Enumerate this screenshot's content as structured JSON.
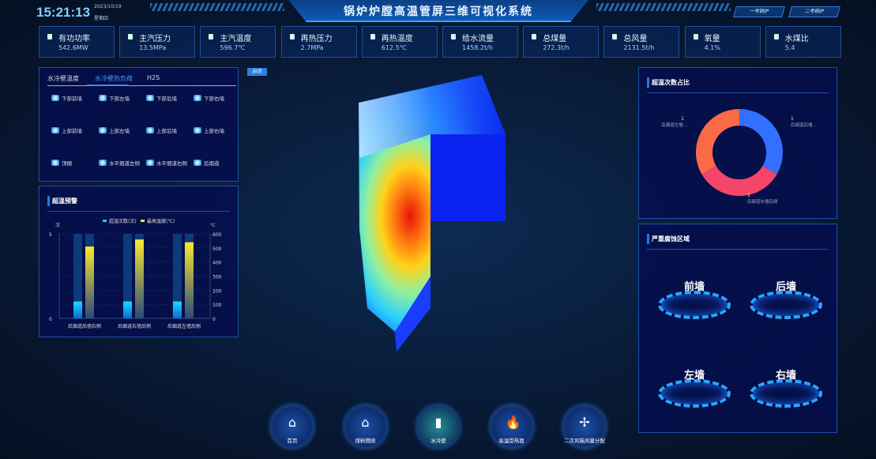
{
  "header": {
    "time": "15:21:13",
    "date": "2023/10/19",
    "weekday": "星期四",
    "title": "锅炉炉膛高温管屏三维可视化系统",
    "boiler_buttons": [
      "一号锅炉",
      "二号锅炉"
    ]
  },
  "metrics": [
    {
      "label": "有功功率",
      "value": "542.6MW"
    },
    {
      "label": "主汽压力",
      "value": "13.5MPa"
    },
    {
      "label": "主汽温度",
      "value": "596.7℃"
    },
    {
      "label": "再热压力",
      "value": "2.7MPa"
    },
    {
      "label": "再热温度",
      "value": "612.5℃"
    },
    {
      "label": "给水流量",
      "value": "1458.2t/h"
    },
    {
      "label": "总煤量",
      "value": "272.3t/h"
    },
    {
      "label": "总风量",
      "value": "2131.5t/h"
    },
    {
      "label": "氧量",
      "value": "4.1%"
    },
    {
      "label": "水煤比",
      "value": "5.4"
    }
  ],
  "wall_panel": {
    "tabs": [
      "水冷壁温度",
      "水冷壁热负荷",
      "H2S"
    ],
    "active_tab": 1,
    "items": [
      "下部前墙",
      "下部左墙",
      "下部后墙",
      "下部右墙",
      "上部前墙",
      "上部左墙",
      "上部后墙",
      "上部右墙",
      "顶棚",
      "水平烟道左侧",
      "水平烟道右侧",
      "后烟道"
    ]
  },
  "start_button": "启动",
  "chart_data": [
    {
      "type": "bar",
      "title": "超温预警",
      "categories": [
        "后烟道后墙右侧",
        "后烟道右墙后侧",
        "后烟道左墙后侧"
      ],
      "series": [
        {
          "name": "超温次数(次)",
          "values": [
            1,
            1,
            1
          ],
          "axis": "left",
          "color": "#1fc8ff"
        },
        {
          "name": "最高温度(℃)",
          "values": [
            510,
            560,
            540
          ],
          "axis": "right",
          "color": "#f5e22a"
        }
      ],
      "ylabel_left": "次",
      "ylabel_right": "℃",
      "ylim_left": [
        0,
        5
      ],
      "ylim_right": [
        0,
        600
      ],
      "yticks_left": [
        "0",
        "5"
      ],
      "yticks_right": [
        "0",
        "100",
        "200",
        "300",
        "400",
        "500",
        "600"
      ],
      "legend": "top"
    },
    {
      "type": "pie",
      "title": "超温次数占比",
      "donut": true,
      "slices": [
        {
          "label": "后烟道后墙...",
          "value": 1,
          "color": "#3370ff"
        },
        {
          "label": "后烟道右墙后侧",
          "value": 1,
          "color": "#f5456a"
        },
        {
          "label": "后烟道左墙...",
          "value": 1,
          "color": "#fa6a45"
        }
      ]
    }
  ],
  "corrosion": {
    "title": "严重腐蚀区域",
    "areas": [
      "前墙",
      "后墙",
      "左墙",
      "右墙"
    ]
  },
  "nav": [
    {
      "label": "首页",
      "icon": "home-icon"
    },
    {
      "label": "煤粉燃烧",
      "icon": "burner-icon"
    },
    {
      "label": "水冷壁",
      "icon": "water-wall-icon"
    },
    {
      "label": "高温受热面",
      "icon": "flame-icon"
    },
    {
      "label": "二次风箱风量分配",
      "icon": "fan-icon"
    }
  ]
}
